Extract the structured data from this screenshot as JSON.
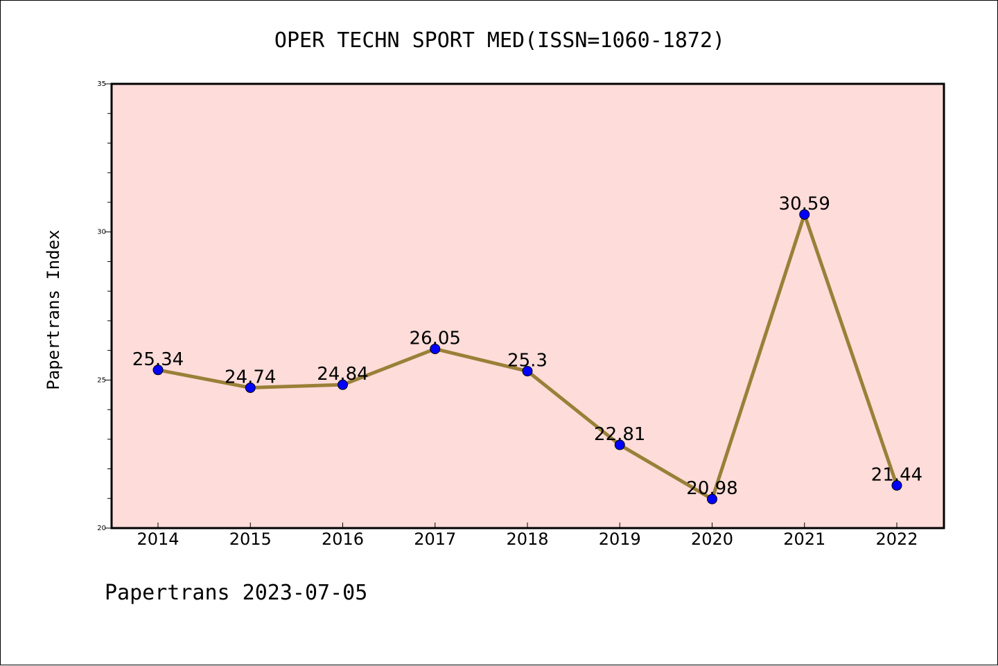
{
  "chart_data": {
    "type": "line",
    "title": "OPER TECHN SPORT MED(ISSN=1060-1872)",
    "xlabel": "",
    "ylabel": "Papertrans Index",
    "categories": [
      "2014",
      "2015",
      "2016",
      "2017",
      "2018",
      "2019",
      "2020",
      "2021",
      "2022"
    ],
    "values": [
      25.34,
      24.74,
      24.84,
      26.05,
      25.3,
      22.81,
      20.98,
      30.59,
      21.44
    ],
    "data_labels": [
      "25.34",
      "24.74",
      "24.84",
      "26.05",
      "25.3",
      "22.81",
      "20.98",
      "30.59",
      "21.44"
    ],
    "ylim": [
      20,
      35
    ],
    "yticks": [
      "20",
      "25",
      "30",
      "35"
    ],
    "grid": false,
    "colors": {
      "plot_background": "#fddcd9",
      "line": "#9a8038",
      "marker": "#0000ff"
    }
  },
  "footer": {
    "text": "Papertrans 2023-07-05"
  }
}
